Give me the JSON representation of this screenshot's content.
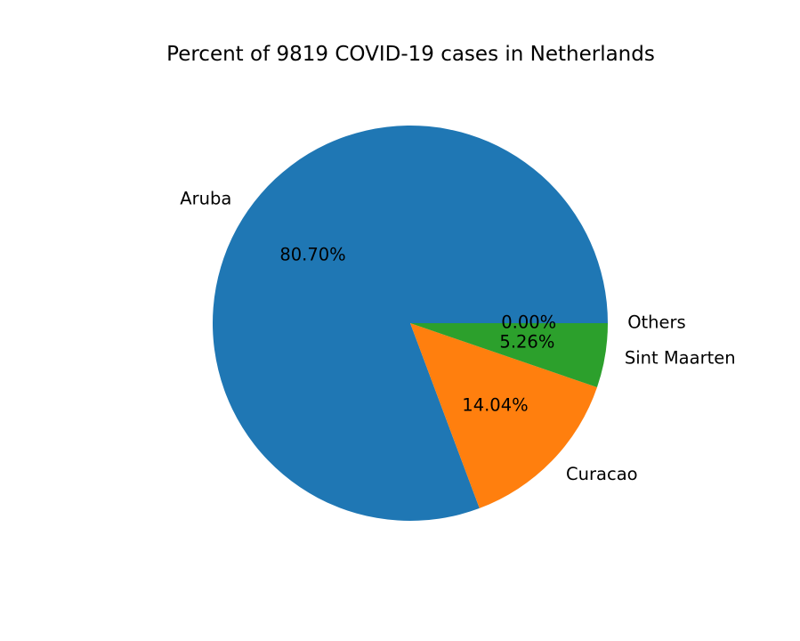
{
  "chart_data": {
    "type": "pie",
    "title": "Percent of 9819 COVID-19 cases in Netherlands",
    "categories": [
      "Aruba",
      "Curacao",
      "Sint Maarten",
      "Others"
    ],
    "values": [
      80.7,
      14.04,
      5.26,
      0.0
    ],
    "value_labels": [
      "80.70%",
      "14.04%",
      "5.26%",
      "0.00%"
    ],
    "colors": [
      "#1f77b4",
      "#ff7f0e",
      "#2ca02c",
      "#d62728"
    ],
    "start_angle_deg": 0,
    "direction": "counterclockwise",
    "legend": "none"
  }
}
